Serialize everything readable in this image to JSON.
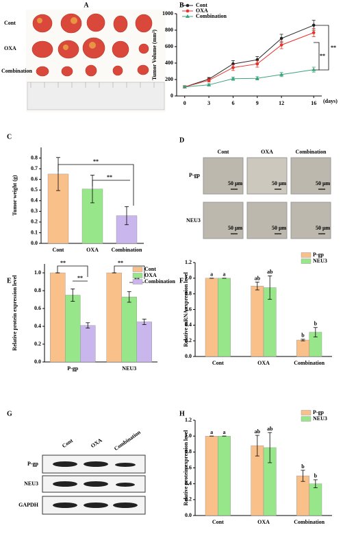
{
  "chart_data": [
    {
      "type": "line",
      "label": "B",
      "x": [
        0,
        3,
        6,
        9,
        12,
        16
      ],
      "xlim": [
        -1,
        17
      ],
      "xticks": [
        0,
        3,
        6,
        9,
        12,
        16
      ],
      "ylim": [
        0,
        1000
      ],
      "yticks": [
        0,
        200,
        400,
        600,
        800,
        1000
      ],
      "x_label": "(days)",
      "y_label": "Tumor Volume (mm³)",
      "legend": "upper left",
      "series": [
        {
          "name": "Cont",
          "color": "#222222",
          "marker": "circle",
          "values": [
            110,
            205,
            390,
            440,
            700,
            860
          ],
          "errors": [
            15,
            20,
            40,
            40,
            50,
            60
          ]
        },
        {
          "name": "OXA",
          "color": "#e8322a",
          "marker": "circle",
          "values": [
            110,
            190,
            345,
            390,
            620,
            770
          ],
          "errors": [
            15,
            20,
            35,
            40,
            45,
            50
          ]
        },
        {
          "name": "Combination",
          "color": "#3aa37a",
          "marker": "triangle",
          "values": [
            110,
            135,
            210,
            215,
            260,
            320
          ],
          "errors": [
            10,
            15,
            20,
            20,
            25,
            30
          ]
        }
      ],
      "annotations": [
        "**",
        "**"
      ]
    },
    {
      "type": "bar",
      "label": "C",
      "categories": [
        "Cont",
        "OXA",
        "Combination"
      ],
      "values": [
        0.65,
        0.51,
        0.26
      ],
      "errors": [
        0.155,
        0.13,
        0.085
      ],
      "colors": [
        "#f9c08a",
        "#98e68a",
        "#c9b6ec"
      ],
      "ylim": [
        0,
        0.9
      ],
      "yticks": [
        {
          "value": 0,
          "label": "0.0"
        },
        0.1,
        0.2,
        0.3,
        0.4,
        0.5,
        0.6,
        0.7,
        0.8
      ],
      "y_label": "Tumor weight (g)",
      "annotations": [
        "**",
        "**"
      ]
    },
    {
      "type": "bar",
      "label": "E",
      "categories": [
        "P-gp",
        "NEU3"
      ],
      "legend": "upper right",
      "series": [
        {
          "name": "Cont",
          "color": "#f9c08a",
          "values": [
            1.0,
            1.0
          ],
          "errors": [
            0,
            0
          ]
        },
        {
          "name": "OXA",
          "color": "#98e68a",
          "values": [
            0.75,
            0.73
          ],
          "errors": [
            0.07,
            0.06
          ]
        },
        {
          "name": "Combination",
          "color": "#c9b6ec",
          "values": [
            0.41,
            0.45
          ],
          "errors": [
            0.03,
            0.03
          ]
        }
      ],
      "ylim": [
        0,
        1.1
      ],
      "yticks": [
        {
          "value": 0,
          "label": "0.0"
        },
        0.2,
        0.4,
        0.6,
        0.8,
        {
          "value": 1,
          "label": "1.0"
        }
      ],
      "y_label": "Relative protein expression level",
      "annotations": [
        "**",
        "**",
        "**",
        "**"
      ]
    },
    {
      "type": "bar",
      "label": "F",
      "categories": [
        "Cont",
        "OXA",
        "Combination"
      ],
      "legend": "upper right",
      "series": [
        {
          "name": "P-gp",
          "color": "#f9c08a",
          "values": [
            1.0,
            0.9,
            0.21
          ],
          "errors": [
            0,
            0.05,
            0.01
          ],
          "letters": [
            "a",
            "ab",
            "b"
          ]
        },
        {
          "name": "NEU3",
          "color": "#98e68a",
          "values": [
            1.0,
            0.88,
            0.31
          ],
          "errors": [
            0,
            0.15,
            0.06
          ],
          "letters": [
            "a",
            "ab",
            "b"
          ]
        }
      ],
      "ylim": [
        0,
        1.2
      ],
      "yticks": [
        {
          "value": 0,
          "label": "0.0"
        },
        0.2,
        0.4,
        0.6,
        0.8,
        {
          "value": 1,
          "label": "1.0"
        },
        1.2
      ],
      "y_label": "Relative mRNA expression level"
    },
    {
      "type": "bar",
      "label": "H",
      "categories": [
        "Cont",
        "OXA",
        "Combination"
      ],
      "legend": "upper right",
      "series": [
        {
          "name": "P-gp",
          "color": "#f9c08a",
          "values": [
            1.0,
            0.88,
            0.5
          ],
          "errors": [
            0,
            0.13,
            0.07
          ],
          "letters": [
            "a",
            "ab",
            "b"
          ]
        },
        {
          "name": "NEU3",
          "color": "#98e68a",
          "values": [
            1.0,
            0.855,
            0.4
          ],
          "errors": [
            0,
            0.19,
            0.05
          ],
          "letters": [
            "a",
            "ab",
            "b"
          ]
        }
      ],
      "ylim": [
        0,
        1.2
      ],
      "yticks": [
        {
          "value": 0,
          "label": "0.0"
        },
        0.2,
        0.4,
        0.6,
        0.8,
        {
          "value": 1,
          "label": "1.0"
        },
        1.2
      ],
      "y_label": "Relative protein expression level"
    }
  ],
  "panels": {
    "A": {
      "label": "A",
      "rows": [
        "Cont",
        "OXA",
        "Combination"
      ]
    },
    "D": {
      "label": "D",
      "columns": [
        "Cont",
        "OXA",
        "Combination"
      ],
      "rows": [
        "P-gp",
        "NEU3"
      ],
      "scale_bar": "50 μm"
    },
    "G": {
      "label": "G",
      "lanes": [
        "Cont",
        "OXA",
        "Combination"
      ],
      "rows": [
        "P-gp",
        "NEU3",
        "GAPDH"
      ]
    }
  }
}
